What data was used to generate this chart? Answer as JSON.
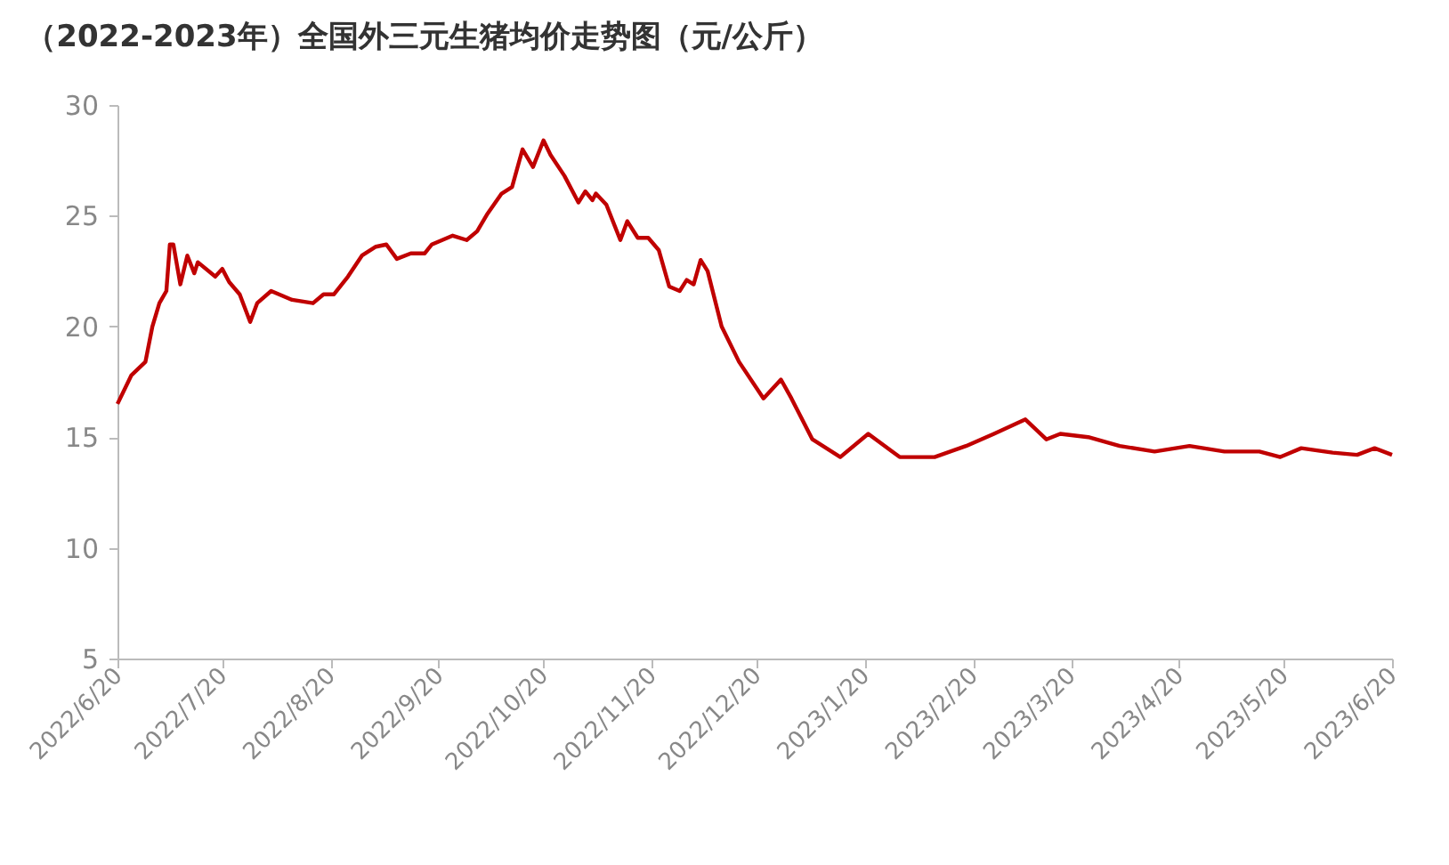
{
  "chart_data": {
    "type": "line",
    "title": "（2022-2023年）全国外三元生猪均价走势图（元/公斤）",
    "x": [
      "2022-06-20",
      "2022-06-24",
      "2022-06-28",
      "2022-06-30",
      "2022-07-02",
      "2022-07-04",
      "2022-07-05",
      "2022-07-06",
      "2022-07-08",
      "2022-07-10",
      "2022-07-12",
      "2022-07-13",
      "2022-07-18",
      "2022-07-20",
      "2022-07-22",
      "2022-07-25",
      "2022-07-28",
      "2022-07-30",
      "2022-08-03",
      "2022-08-06",
      "2022-08-09",
      "2022-08-15",
      "2022-08-18",
      "2022-08-21",
      "2022-08-25",
      "2022-08-29",
      "2022-09-02",
      "2022-09-05",
      "2022-09-08",
      "2022-09-12",
      "2022-09-16",
      "2022-09-18",
      "2022-09-24",
      "2022-09-28",
      "2022-10-01",
      "2022-10-04",
      "2022-10-08",
      "2022-10-11",
      "2022-10-14",
      "2022-10-17",
      "2022-10-20",
      "2022-10-22",
      "2022-10-26",
      "2022-10-30",
      "2022-11-01",
      "2022-11-03",
      "2022-11-04",
      "2022-11-07",
      "2022-11-11",
      "2022-11-13",
      "2022-11-16",
      "2022-11-19",
      "2022-11-22",
      "2022-11-25",
      "2022-11-28",
      "2022-11-30",
      "2022-12-02",
      "2022-12-04",
      "2022-12-06",
      "2022-12-10",
      "2022-12-15",
      "2022-12-22",
      "2022-12-27",
      "2022-12-30",
      "2023-01-05",
      "2023-01-13",
      "2023-01-21",
      "2023-01-30",
      "2023-02-09",
      "2023-02-18",
      "2023-02-26",
      "2023-03-07",
      "2023-03-13",
      "2023-03-17",
      "2023-03-25",
      "2023-04-03",
      "2023-04-13",
      "2023-04-23",
      "2023-05-03",
      "2023-05-13",
      "2023-05-19",
      "2023-05-25",
      "2023-06-03",
      "2023-06-10",
      "2023-06-15",
      "2023-06-20"
    ],
    "series": [
      {
        "color": "#c00000",
        "values": [
          16.5,
          17.8,
          18.4,
          20.0,
          21.05,
          21.6,
          23.7,
          23.7,
          21.9,
          23.2,
          22.4,
          22.9,
          22.25,
          22.6,
          22.0,
          21.45,
          20.2,
          21.05,
          21.6,
          21.4,
          21.2,
          21.05,
          21.45,
          21.45,
          22.25,
          23.2,
          23.6,
          23.7,
          23.05,
          23.3,
          23.3,
          23.7,
          24.1,
          23.9,
          24.3,
          25.1,
          26.0,
          26.3,
          28.0,
          27.2,
          28.4,
          27.75,
          26.8,
          25.6,
          26.1,
          25.7,
          26.0,
          25.5,
          23.9,
          24.75,
          24.0,
          24.0,
          23.45,
          21.8,
          21.6,
          22.1,
          21.9,
          23.0,
          22.5,
          20.0,
          18.4,
          16.75,
          17.6,
          16.75,
          14.9,
          14.1,
          15.15,
          14.1,
          14.1,
          14.6,
          15.15,
          15.8,
          14.9,
          15.15,
          15.0,
          14.6,
          14.35,
          14.6,
          14.35,
          14.35,
          14.1,
          14.5,
          14.3,
          14.2,
          14.5,
          14.2
        ]
      }
    ],
    "xlim": [
      "2022-06-20",
      "2023-06-20"
    ],
    "xticks": [
      {
        "value": "2022-06-20",
        "label": "2022/6/20"
      },
      {
        "value": "2022-07-20",
        "label": "2022/7/20"
      },
      {
        "value": "2022-08-20",
        "label": "2022/8/20"
      },
      {
        "value": "2022-09-20",
        "label": "2022/9/20"
      },
      {
        "value": "2022-10-20",
        "label": "2022/10/20"
      },
      {
        "value": "2022-11-20",
        "label": "2022/11/20"
      },
      {
        "value": "2022-12-20",
        "label": "2022/12/20"
      },
      {
        "value": "2023-01-20",
        "label": "2023/1/20"
      },
      {
        "value": "2023-02-20",
        "label": "2023/2/20"
      },
      {
        "value": "2023-03-20",
        "label": "2023/3/20"
      },
      {
        "value": "2023-04-20",
        "label": "2023/4/20"
      },
      {
        "value": "2023-05-20",
        "label": "2023/5/20"
      },
      {
        "value": "2023-06-20",
        "label": "2023/6/20"
      }
    ],
    "ylim": [
      5,
      30
    ],
    "yticks": [
      5,
      10,
      15,
      20,
      25,
      30
    ],
    "grid": false,
    "legend": false,
    "marker": "none",
    "line_style": "solid"
  }
}
